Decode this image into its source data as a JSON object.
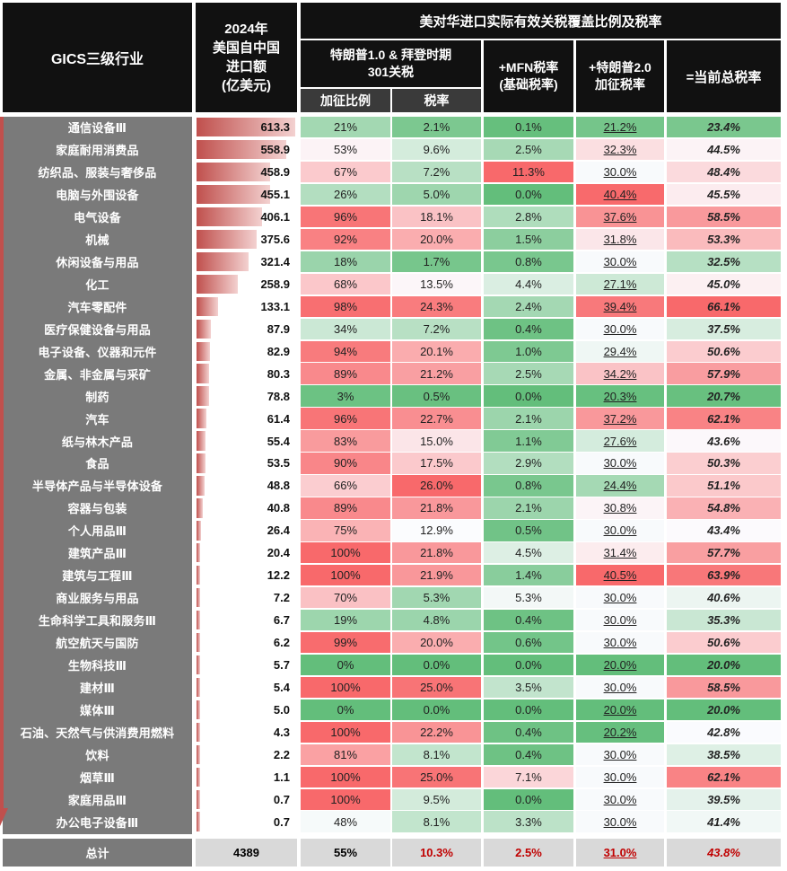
{
  "headers": {
    "category": "GICS三级行业",
    "imports": "2024年\n美国自中国\n进口额\n(亿美元)",
    "group": "美对华进口实际有效关税覆盖比例及税率",
    "s301": "特朗普1.0 & 拜登时期\n301关税",
    "coverage": "加征比例",
    "rate": "税率",
    "mfn": "+MFN税率\n(基础税率)",
    "t2": "+特朗普2.0\n加征税率",
    "total": "=当前总税率"
  },
  "rows": [
    {
      "name": "通信设备Ⅲ",
      "imp": "613.3",
      "cov": "21%",
      "rate": "2.1%",
      "mfn": "0.1%",
      "t2": "21.2%",
      "total": "23.4%"
    },
    {
      "name": "家庭耐用消费品",
      "imp": "558.9",
      "cov": "53%",
      "rate": "9.6%",
      "mfn": "2.5%",
      "t2": "32.3%",
      "total": "44.5%"
    },
    {
      "name": "纺织品、服装与奢侈品",
      "imp": "458.9",
      "cov": "67%",
      "rate": "7.2%",
      "mfn": "11.3%",
      "t2": "30.0%",
      "total": "48.4%"
    },
    {
      "name": "电脑与外围设备",
      "imp": "455.1",
      "cov": "26%",
      "rate": "5.0%",
      "mfn": "0.0%",
      "t2": "40.4%",
      "total": "45.5%"
    },
    {
      "name": "电气设备",
      "imp": "406.1",
      "cov": "96%",
      "rate": "18.1%",
      "mfn": "2.8%",
      "t2": "37.6%",
      "total": "58.5%"
    },
    {
      "name": "机械",
      "imp": "375.6",
      "cov": "92%",
      "rate": "20.0%",
      "mfn": "1.5%",
      "t2": "31.8%",
      "total": "53.3%"
    },
    {
      "name": "休闲设备与用品",
      "imp": "321.4",
      "cov": "18%",
      "rate": "1.7%",
      "mfn": "0.8%",
      "t2": "30.0%",
      "total": "32.5%"
    },
    {
      "name": "化工",
      "imp": "258.9",
      "cov": "68%",
      "rate": "13.5%",
      "mfn": "4.4%",
      "t2": "27.1%",
      "total": "45.0%"
    },
    {
      "name": "汽车零配件",
      "imp": "133.1",
      "cov": "98%",
      "rate": "24.3%",
      "mfn": "2.4%",
      "t2": "39.4%",
      "total": "66.1%"
    },
    {
      "name": "医疗保健设备与用品",
      "imp": "87.9",
      "cov": "34%",
      "rate": "7.2%",
      "mfn": "0.4%",
      "t2": "30.0%",
      "total": "37.5%"
    },
    {
      "name": "电子设备、仪器和元件",
      "imp": "82.9",
      "cov": "94%",
      "rate": "20.1%",
      "mfn": "1.0%",
      "t2": "29.4%",
      "total": "50.6%"
    },
    {
      "name": "金属、非金属与采矿",
      "imp": "80.3",
      "cov": "89%",
      "rate": "21.2%",
      "mfn": "2.5%",
      "t2": "34.2%",
      "total": "57.9%"
    },
    {
      "name": "制药",
      "imp": "78.8",
      "cov": "3%",
      "rate": "0.5%",
      "mfn": "0.0%",
      "t2": "20.3%",
      "total": "20.7%"
    },
    {
      "name": "汽车",
      "imp": "61.4",
      "cov": "96%",
      "rate": "22.7%",
      "mfn": "2.1%",
      "t2": "37.2%",
      "total": "62.1%"
    },
    {
      "name": "纸与林木产品",
      "imp": "55.4",
      "cov": "83%",
      "rate": "15.0%",
      "mfn": "1.1%",
      "t2": "27.6%",
      "total": "43.6%"
    },
    {
      "name": "食品",
      "imp": "53.5",
      "cov": "90%",
      "rate": "17.5%",
      "mfn": "2.9%",
      "t2": "30.0%",
      "total": "50.3%"
    },
    {
      "name": "半导体产品与半导体设备",
      "imp": "48.8",
      "cov": "66%",
      "rate": "26.0%",
      "mfn": "0.8%",
      "t2": "24.4%",
      "total": "51.1%"
    },
    {
      "name": "容器与包装",
      "imp": "40.8",
      "cov": "89%",
      "rate": "21.8%",
      "mfn": "2.1%",
      "t2": "30.8%",
      "total": "54.8%"
    },
    {
      "name": "个人用品Ⅲ",
      "imp": "26.4",
      "cov": "75%",
      "rate": "12.9%",
      "mfn": "0.5%",
      "t2": "30.0%",
      "total": "43.4%"
    },
    {
      "name": "建筑产品Ⅲ",
      "imp": "20.4",
      "cov": "100%",
      "rate": "21.8%",
      "mfn": "4.5%",
      "t2": "31.4%",
      "total": "57.7%"
    },
    {
      "name": "建筑与工程Ⅲ",
      "imp": "12.2",
      "cov": "100%",
      "rate": "21.9%",
      "mfn": "1.4%",
      "t2": "40.5%",
      "total": "63.9%"
    },
    {
      "name": "商业服务与用品",
      "imp": "7.2",
      "cov": "70%",
      "rate": "5.3%",
      "mfn": "5.3%",
      "t2": "30.0%",
      "total": "40.6%"
    },
    {
      "name": "生命科学工具和服务Ⅲ",
      "imp": "6.7",
      "cov": "19%",
      "rate": "4.8%",
      "mfn": "0.4%",
      "t2": "30.0%",
      "total": "35.3%"
    },
    {
      "name": "航空航天与国防",
      "imp": "6.2",
      "cov": "99%",
      "rate": "20.0%",
      "mfn": "0.6%",
      "t2": "30.0%",
      "total": "50.6%"
    },
    {
      "name": "生物科技Ⅲ",
      "imp": "5.7",
      "cov": "0%",
      "rate": "0.0%",
      "mfn": "0.0%",
      "t2": "20.0%",
      "total": "20.0%"
    },
    {
      "name": "建材Ⅲ",
      "imp": "5.4",
      "cov": "100%",
      "rate": "25.0%",
      "mfn": "3.5%",
      "t2": "30.0%",
      "total": "58.5%"
    },
    {
      "name": "媒体Ⅲ",
      "imp": "5.0",
      "cov": "0%",
      "rate": "0.0%",
      "mfn": "0.0%",
      "t2": "20.0%",
      "total": "20.0%"
    },
    {
      "name": "石油、天然气与供消费用燃料",
      "imp": "4.3",
      "cov": "100%",
      "rate": "22.2%",
      "mfn": "0.4%",
      "t2": "20.2%",
      "total": "42.8%"
    },
    {
      "name": "饮料",
      "imp": "2.2",
      "cov": "81%",
      "rate": "8.1%",
      "mfn": "0.4%",
      "t2": "30.0%",
      "total": "38.5%"
    },
    {
      "name": "烟草Ⅲ",
      "imp": "1.1",
      "cov": "100%",
      "rate": "25.0%",
      "mfn": "7.1%",
      "t2": "30.0%",
      "total": "62.1%"
    },
    {
      "name": "家庭用品Ⅲ",
      "imp": "0.7",
      "cov": "100%",
      "rate": "9.5%",
      "mfn": "0.0%",
      "t2": "30.0%",
      "total": "39.5%"
    },
    {
      "name": "办公电子设备Ⅲ",
      "imp": "0.7",
      "cov": "48%",
      "rate": "8.1%",
      "mfn": "3.3%",
      "t2": "30.0%",
      "total": "41.4%"
    }
  ],
  "total_row": {
    "name": "总计",
    "imp": "4389",
    "cov": "55%",
    "rate": "10.3%",
    "mfn": "2.5%",
    "t2": "31.0%",
    "total": "43.8%"
  },
  "colors": {
    "green": "#63be7b",
    "red": "#f8696b",
    "neutral": "#fcfcff",
    "header": "#111111",
    "category_bg": "#7a7a7a"
  }
}
